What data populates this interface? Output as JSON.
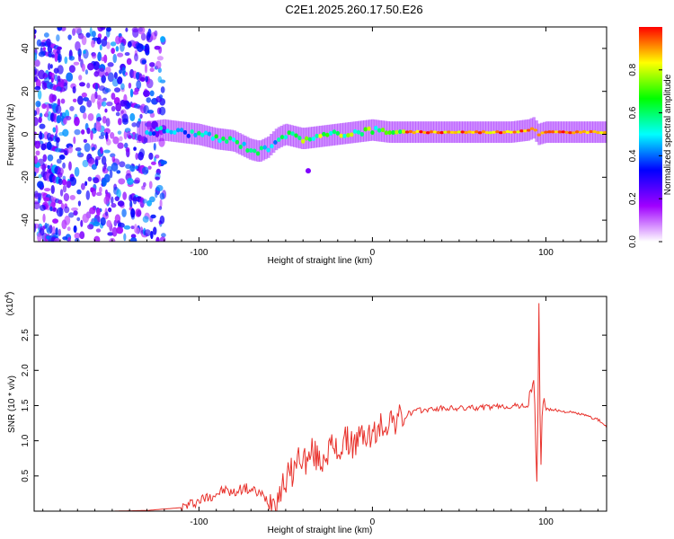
{
  "title": "C2E1.2025.260.17.50.E26",
  "colors": {
    "axis": "#000000",
    "snr_line": "#e8312b",
    "spectro_bg": "#ffffff"
  },
  "chart_data": [
    {
      "type": "heatmap",
      "name": "spectrogram",
      "xlabel": "Height of straight line (km)",
      "ylabel": "Frequency (Hz)",
      "xlim": [
        -195,
        135
      ],
      "ylim": [
        -50,
        50
      ],
      "xticks": [
        -100,
        0,
        100
      ],
      "xtick_labels": [
        "-100",
        "0",
        "100"
      ],
      "yticks": [
        -40,
        -20,
        0,
        20,
        40
      ],
      "ytick_labels": [
        "-40",
        "-20",
        "0",
        "20",
        "40"
      ],
      "ridge": {
        "x": [
          -130,
          -120,
          -110,
          -100,
          -90,
          -80,
          -75,
          -70,
          -65,
          -60,
          -55,
          -50,
          -45,
          -40,
          -30,
          -20,
          -10,
          0,
          10,
          20,
          40,
          60,
          80,
          90,
          93,
          96,
          100,
          110,
          120,
          135
        ],
        "freq": [
          1,
          2,
          1,
          0,
          -2,
          -3,
          -5,
          -7,
          -8,
          -6,
          -2,
          0,
          -1,
          -2,
          -1,
          0,
          1,
          2,
          1,
          1,
          1,
          1,
          1,
          2,
          3,
          0,
          1,
          1,
          1,
          1
        ]
      },
      "colorbar": {
        "label": "Normalized spectral amplitude",
        "range": [
          0,
          1
        ],
        "ticks": [
          0,
          0.2,
          0.4,
          0.6,
          0.8
        ],
        "tick_labels": [
          "0.0",
          "0.2",
          "0.4",
          "0.6",
          "0.8"
        ],
        "colors": [
          "#ffffff",
          "#a000ff",
          "#0000ff",
          "#00ffff",
          "#00ff00",
          "#ffff00",
          "#ff0000"
        ]
      }
    },
    {
      "type": "line",
      "name": "snr",
      "xlabel": "Height of straight line (km)",
      "ylabel": "SNR (10 * v/v)",
      "multiplier_label": "(x10",
      "multiplier_exp": "4",
      "xlim": [
        -195,
        135
      ],
      "ylim": [
        0,
        3.05
      ],
      "xticks": [
        -100,
        0,
        100
      ],
      "xtick_labels": [
        "-100",
        "0",
        "100"
      ],
      "yticks": [
        0.5,
        1.0,
        1.5,
        2.0,
        2.5
      ],
      "ytick_labels": [
        "0.5",
        "1.0",
        "1.5",
        "2.0",
        "2.5"
      ],
      "series": [
        {
          "name": "SNR",
          "x": [
            -195,
            -150,
            -130,
            -110,
            -100,
            -90,
            -85,
            -80,
            -75,
            -70,
            -65,
            -60,
            -55,
            -50,
            -45,
            -42,
            -40,
            -37,
            -35,
            -30,
            -25,
            -20,
            -15,
            -10,
            -5,
            0,
            5,
            10,
            15,
            20,
            25,
            30,
            35,
            40,
            50,
            60,
            70,
            80,
            90,
            93,
            95,
            96,
            97,
            98,
            100,
            110,
            120,
            130,
            135
          ],
          "y": [
            0.0,
            0.0,
            0.01,
            0.05,
            0.15,
            0.25,
            0.3,
            0.25,
            0.33,
            0.3,
            0.25,
            0.15,
            0.2,
            0.45,
            0.6,
            0.8,
            0.75,
            0.7,
            0.85,
            0.7,
            0.9,
            0.85,
            1.0,
            0.95,
            1.1,
            1.05,
            1.2,
            1.3,
            1.3,
            1.38,
            1.42,
            1.44,
            1.45,
            1.46,
            1.46,
            1.47,
            1.48,
            1.49,
            1.5,
            1.9,
            0.3,
            2.9,
            0.5,
            1.6,
            1.45,
            1.42,
            1.38,
            1.3,
            1.2
          ]
        }
      ]
    }
  ]
}
